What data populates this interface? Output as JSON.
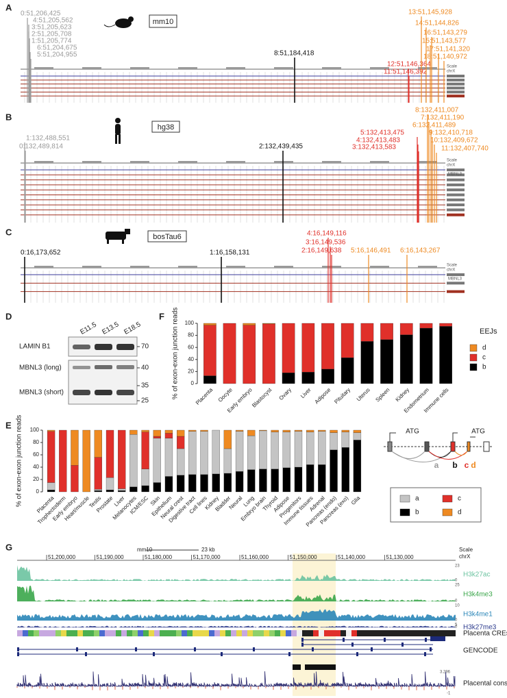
{
  "panels": {
    "A": {
      "label": "A",
      "assembly": "mm10",
      "scale": "Scale",
      "chrom": "chrX",
      "sites": [
        {
          "text": "0:51,206,425",
          "color": "#9a9a9a"
        },
        {
          "text": "4:51,205,562",
          "color": "#9a9a9a"
        },
        {
          "text": "3:51,205,623",
          "color": "#9a9a9a"
        },
        {
          "text": "2:51,205,708",
          "color": "#9a9a9a"
        },
        {
          "text": "1:51,205,774",
          "color": "#9a9a9a"
        },
        {
          "text": "6:51,204,675",
          "color": "#9a9a9a"
        },
        {
          "text": "5:51,204,955",
          "color": "#9a9a9a"
        },
        {
          "text": "8:51,184,418",
          "color": "#111111"
        },
        {
          "text": "12:51,146,364",
          "color": "#e0302a"
        },
        {
          "text": "11:51,146,392",
          "color": "#e0302a"
        },
        {
          "text": "13:51,145,928",
          "color": "#ee8a22"
        },
        {
          "text": "14:51,144,826",
          "color": "#ee8a22"
        },
        {
          "text": "16:51,143,279",
          "color": "#ee8a22"
        },
        {
          "text": "15:51,143,577",
          "color": "#ee8a22"
        },
        {
          "text": "17:51,141,320",
          "color": "#ee8a22"
        },
        {
          "text": "18:51,140,972",
          "color": "#ee8a22"
        }
      ]
    },
    "B": {
      "label": "B",
      "assembly": "hg38",
      "scale": "Scale",
      "chrom": "chrX",
      "gene": "MBNL3",
      "sites": [
        {
          "text": "1:132,488,551",
          "color": "#9a9a9a"
        },
        {
          "text": "0:132,489,814",
          "color": "#9a9a9a"
        },
        {
          "text": "2:132,439,435",
          "color": "#111111"
        },
        {
          "text": "5:132,413,475",
          "color": "#e0302a"
        },
        {
          "text": "4:132,413,483",
          "color": "#e0302a"
        },
        {
          "text": "3:132,413,583",
          "color": "#e0302a"
        },
        {
          "text": "8:132,411,007",
          "color": "#ee8a22"
        },
        {
          "text": "7:132,411,190",
          "color": "#ee8a22"
        },
        {
          "text": "6:132,411,489",
          "color": "#ee8a22"
        },
        {
          "text": "9:132,410,718",
          "color": "#ee8a22"
        },
        {
          "text": "10:132,409,672",
          "color": "#ee8a22"
        },
        {
          "text": "11:132,407,740",
          "color": "#ee8a22"
        }
      ]
    },
    "C": {
      "label": "C",
      "assembly": "bosTau6",
      "scale": "Scale",
      "chrom": "chrX",
      "gene": "MBNL3",
      "sites": [
        {
          "text": "0:16,173,652",
          "color": "#111111"
        },
        {
          "text": "1:16,158,131",
          "color": "#111111"
        },
        {
          "text": "4:16,149,116",
          "color": "#e0302a"
        },
        {
          "text": "3:16,149,536",
          "color": "#e0302a"
        },
        {
          "text": "2:16,149,638",
          "color": "#e0302a"
        },
        {
          "text": "5:16,146,491",
          "color": "#ee8a22"
        },
        {
          "text": "6:16,143,267",
          "color": "#ee8a22"
        }
      ]
    },
    "D": {
      "label": "D",
      "lanes": [
        "E11.5",
        "E13.5",
        "E18.5"
      ],
      "rows": [
        "LAMIN B1",
        "MBNL3 (long)",
        "MBNL3 (short)"
      ],
      "markers": [
        70,
        40,
        35,
        25
      ]
    },
    "E_diagram": {
      "atg": [
        "ATG",
        "ATG"
      ],
      "junctions": [
        "a",
        "b",
        "c",
        "d"
      ]
    },
    "G": {
      "label": "G",
      "assembly": "mm10",
      "scale_bar": "23 kb",
      "scale": "Scale",
      "chrom": "chrX",
      "coords": [
        "51,200,000",
        "51,190,000",
        "51,180,000",
        "51,170,000",
        "51,160,000",
        "51,150,000",
        "51,140,000",
        "51,130,000"
      ],
      "tracks": [
        {
          "name": "H3k27ac",
          "color": "#6cc3a0",
          "max": 23,
          "min": 0
        },
        {
          "name": "H3k4me3",
          "color": "#3aa64a",
          "max": 25,
          "min": 0
        },
        {
          "name": "H3k4me1",
          "color": "#2a86b8",
          "max": 10,
          "min": 0
        },
        {
          "name": "H3k27me3",
          "color": "#2b3a8c",
          "max": 5,
          "min": 0
        }
      ],
      "cre": "Placenta CREs",
      "gencode": "GENCODE",
      "conservation": {
        "name": "Placental conservation",
        "max": 3.296,
        "min": -1
      }
    }
  },
  "chart_data": [
    {
      "type": "stacked_bar",
      "panel": "F",
      "ylabel": "% of exon-exon junction reads",
      "legend_title": "EEJs",
      "categories": [
        "Placenta",
        "Oocyte",
        "Early embryo",
        "Blastocyst",
        "Ovary",
        "Liver",
        "Adipose",
        "Pituitary",
        "Uterus",
        "Spleen",
        "Kidney",
        "Endometrium",
        "Immune cells"
      ],
      "series": [
        {
          "name": "b",
          "color": "#000000",
          "values": [
            13,
            0,
            0,
            0,
            18,
            19,
            24,
            43,
            70,
            73,
            81,
            92,
            95
          ]
        },
        {
          "name": "c",
          "color": "#e0302a",
          "values": [
            84,
            100,
            97,
            99,
            82,
            81,
            76,
            57,
            30,
            27,
            19,
            8,
            5
          ]
        },
        {
          "name": "d",
          "color": "#ee8a22",
          "values": [
            3,
            0,
            3,
            1,
            0,
            0,
            0,
            0,
            0,
            0,
            0,
            0,
            0
          ]
        }
      ],
      "ylim": [
        0,
        100
      ],
      "yticks": [
        0,
        20,
        40,
        60,
        80,
        100
      ]
    },
    {
      "type": "stacked_bar",
      "panel": "E",
      "ylabel": "% of exon-exon junction reads",
      "categories": [
        "Placenta",
        "Trophectoderm",
        "Early embryo",
        "Heart/muscle",
        "Testis",
        "Prostate",
        "Liver",
        "Melanocytes",
        "ICM/ESC",
        "Skin",
        "Epithelium",
        "Neural crest",
        "Digestive tract",
        "Cell lines",
        "Kidney",
        "Bladder",
        "Neural",
        "Lung",
        "Embryo brain",
        "Thyroid",
        "Adipose",
        "Progenitors",
        "Immune tissues",
        "Adrenal",
        "Pancreas (endo)",
        "Pancreas (exo)",
        "Glia"
      ],
      "series": [
        {
          "name": "b",
          "color": "#000000",
          "values": [
            3,
            0,
            0,
            0,
            2,
            3,
            2,
            8,
            10,
            15,
            25,
            27,
            28,
            28,
            29,
            30,
            33,
            36,
            37,
            37,
            39,
            40,
            44,
            44,
            68,
            72,
            84
          ]
        },
        {
          "name": "a",
          "color": "#c4c4c4",
          "values": [
            12,
            0,
            0,
            0,
            2,
            20,
            3,
            85,
            27,
            72,
            62,
            43,
            70,
            70,
            71,
            40,
            65,
            55,
            62,
            60,
            58,
            58,
            53,
            54,
            28,
            25,
            12
          ]
        },
        {
          "name": "c",
          "color": "#e0302a",
          "values": [
            83,
            100,
            43,
            0,
            52,
            77,
            95,
            0,
            60,
            3,
            8,
            20,
            0,
            0,
            0,
            0,
            0,
            0,
            0,
            0,
            0,
            0,
            0,
            0,
            0,
            0,
            0
          ]
        },
        {
          "name": "d",
          "color": "#ee8a22",
          "values": [
            2,
            0,
            57,
            100,
            44,
            0,
            0,
            7,
            3,
            10,
            5,
            10,
            2,
            2,
            0,
            30,
            2,
            9,
            1,
            3,
            3,
            2,
            3,
            2,
            4,
            3,
            4
          ]
        }
      ],
      "ylim": [
        0,
        100
      ],
      "yticks": [
        0,
        20,
        40,
        60,
        80,
        100
      ]
    }
  ]
}
